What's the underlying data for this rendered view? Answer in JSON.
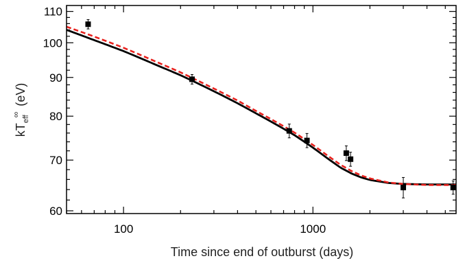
{
  "chart_data": {
    "type": "scatter",
    "title": "",
    "xlabel": "Time since end of outburst (days)",
    "ylabel": {
      "base": "kT",
      "sub": "eff",
      "sup": "∞",
      "unit": "(eV)"
    },
    "x_scale": "log",
    "y_scale": "log",
    "xlim": [
      50,
      5700
    ],
    "ylim": [
      59.5,
      112
    ],
    "x_ticks": [
      100,
      1000
    ],
    "x_tick_labels": [
      "100",
      "1000"
    ],
    "y_ticks": [
      60,
      70,
      80,
      90,
      100,
      110
    ],
    "y_tick_labels": [
      "60",
      "70",
      "80",
      "90",
      "100",
      "110"
    ],
    "grid": false,
    "legend": "none",
    "points": [
      {
        "x": 65,
        "y": 105.8,
        "yerr": 1.5
      },
      {
        "x": 230,
        "y": 89.5,
        "yerr": 1.3
      },
      {
        "x": 750,
        "y": 76.5,
        "yerr": 1.6
      },
      {
        "x": 930,
        "y": 74.3,
        "yerr": 1.6
      },
      {
        "x": 1500,
        "y": 71.5,
        "yerr": 1.6
      },
      {
        "x": 1580,
        "y": 70.2,
        "yerr": 1.5
      },
      {
        "x": 3000,
        "y": 64.4,
        "yerr": 2.0
      },
      {
        "x": 5500,
        "y": 64.4,
        "yerr": 1.3
      }
    ],
    "series": [
      {
        "style": "solid",
        "color": "#000000",
        "x": [
          50,
          70,
          100,
          150,
          200,
          300,
          400,
          500,
          600,
          700,
          800,
          1000,
          1200,
          1400,
          1600,
          1800,
          2000,
          2500,
          3000,
          4000,
          5700
        ],
        "y": [
          104.0,
          100.8,
          97.5,
          93.4,
          90.6,
          86.3,
          83.2,
          80.7,
          78.7,
          77.0,
          75.5,
          72.7,
          70.3,
          68.4,
          67.2,
          66.4,
          65.9,
          65.3,
          65.1,
          65.0,
          65.0
        ]
      },
      {
        "style": "dashed",
        "color": "#e8221e",
        "x": [
          50,
          70,
          100,
          150,
          200,
          300,
          400,
          500,
          600,
          700,
          800,
          1000,
          1200,
          1400,
          1600,
          1800,
          2000,
          2500,
          3000,
          4000,
          5700
        ],
        "y": [
          105.0,
          101.9,
          98.5,
          94.3,
          91.4,
          87.0,
          83.9,
          81.3,
          79.3,
          77.6,
          76.1,
          73.3,
          70.9,
          69.0,
          67.7,
          66.8,
          66.2,
          65.4,
          65.1,
          64.9,
          64.9
        ]
      }
    ]
  }
}
